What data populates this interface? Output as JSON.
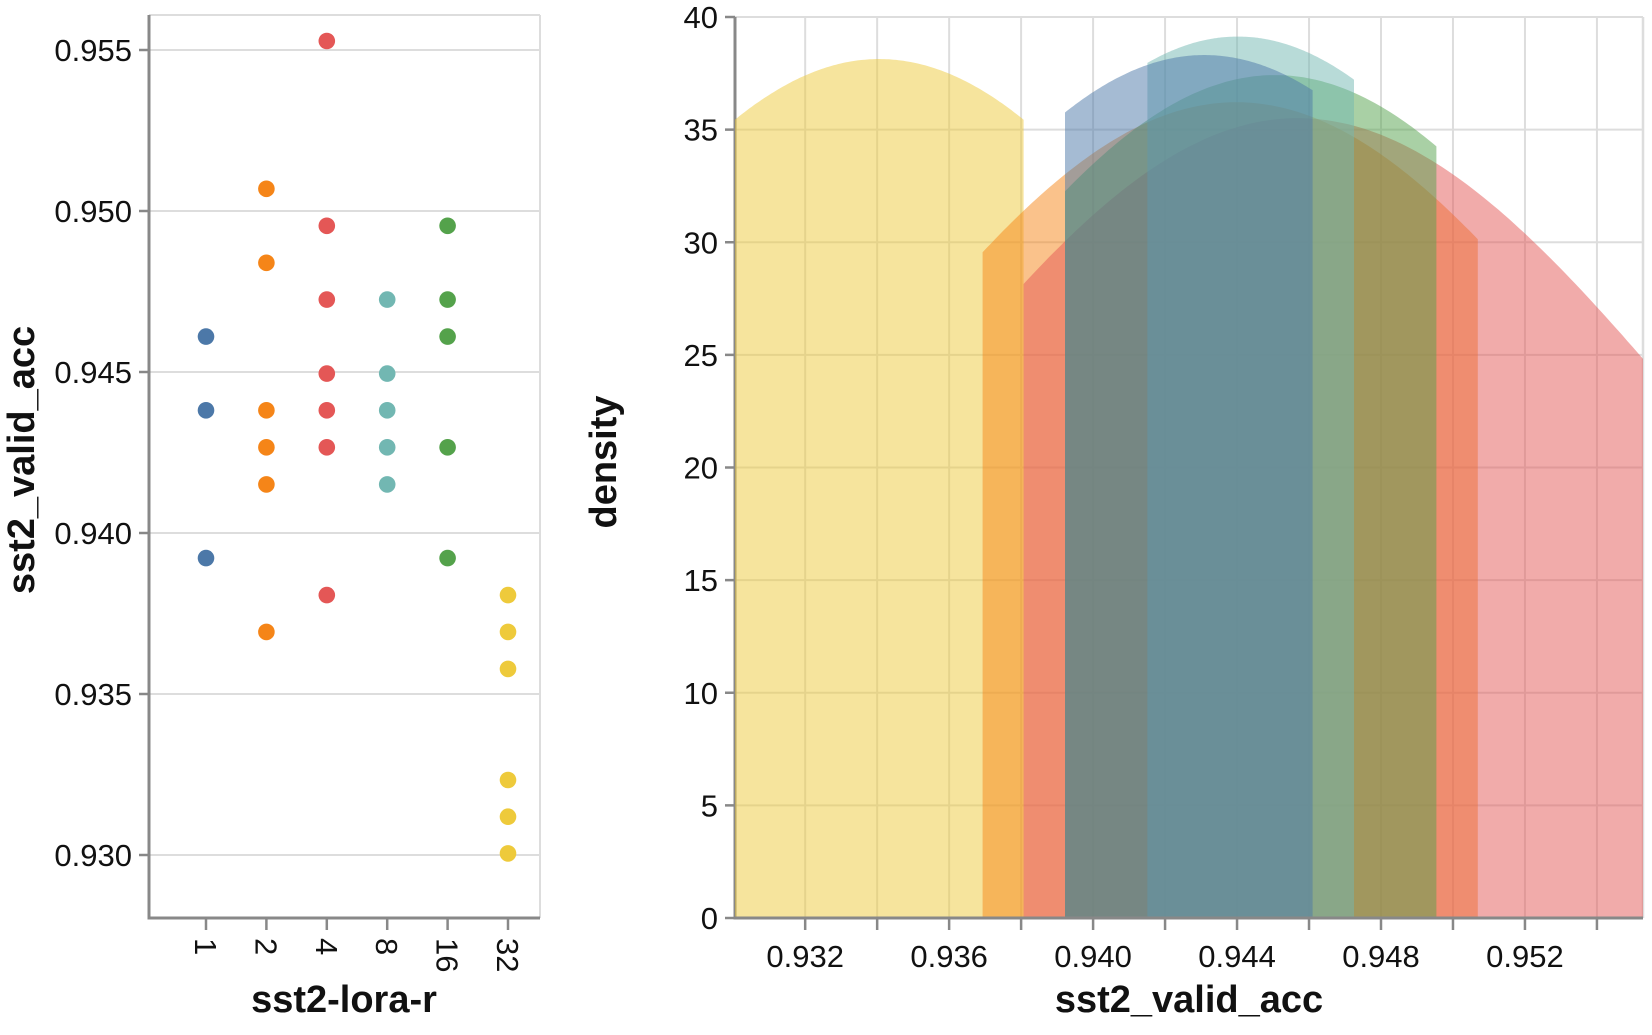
{
  "style": {
    "background": "#ffffff",
    "grid_color": "#dddddd",
    "domain_color": "#888888",
    "border_color": "#dddddd",
    "label_color": "#111111",
    "series_colors": {
      "1": "#4c78a8",
      "2": "#f58518",
      "4": "#e45756",
      "8": "#72b7b2",
      "16": "#54a24b",
      "32": "#eeca3b"
    }
  },
  "chart_data": [
    {
      "type": "scatter",
      "variant": "strip-plot",
      "xlabel": "sst2-lora-r",
      "ylabel": "sst2_valid_acc",
      "x_categories": [
        "1",
        "2",
        "4",
        "8",
        "16",
        "32"
      ],
      "y_domain": [
        0.928,
        0.9561
      ],
      "y_ticks": [
        {
          "value": 0.93,
          "label": "0.930"
        },
        {
          "value": 0.935,
          "label": "0.935"
        },
        {
          "value": 0.94,
          "label": "0.940"
        },
        {
          "value": 0.945,
          "label": "0.945"
        },
        {
          "value": 0.95,
          "label": "0.950"
        },
        {
          "value": 0.955,
          "label": "0.955"
        }
      ],
      "grid": "horizontal",
      "series": [
        {
          "label": "1",
          "color": "#4c78a8",
          "values": [
            0.9461,
            0.94381,
            0.93922
          ]
        },
        {
          "label": "2",
          "color": "#f58518",
          "values": [
            0.95069,
            0.94839,
            0.94381,
            0.94266,
            0.94151,
            0.93693
          ]
        },
        {
          "label": "4",
          "color": "#e45756",
          "values": [
            0.95528,
            0.94954,
            0.94725,
            0.94495,
            0.94381,
            0.94266,
            0.93807
          ]
        },
        {
          "label": "8",
          "color": "#72b7b2",
          "values": [
            0.94725,
            0.94495,
            0.94381,
            0.94266,
            0.94151
          ]
        },
        {
          "label": "16",
          "color": "#54a24b",
          "values": [
            0.94954,
            0.94725,
            0.9461,
            0.94266,
            0.93922
          ]
        },
        {
          "label": "32",
          "color": "#eeca3b",
          "values": [
            0.93807,
            0.93693,
            0.93578,
            0.93233,
            0.93119,
            0.93005
          ]
        }
      ]
    },
    {
      "type": "area",
      "variant": "kde-density",
      "xlabel": "sst2_valid_acc",
      "ylabel": "density",
      "x_domain": [
        0.93005,
        0.95528
      ],
      "y_domain": [
        0,
        40
      ],
      "grid": "both",
      "x_ticks": [
        {
          "value": 0.932,
          "label": "0.932"
        },
        {
          "value": 0.934,
          "label": ""
        },
        {
          "value": 0.936,
          "label": "0.936"
        },
        {
          "value": 0.938,
          "label": ""
        },
        {
          "value": 0.94,
          "label": "0.940"
        },
        {
          "value": 0.942,
          "label": ""
        },
        {
          "value": 0.944,
          "label": "0.944"
        },
        {
          "value": 0.946,
          "label": ""
        },
        {
          "value": 0.948,
          "label": "0.948"
        },
        {
          "value": 0.95,
          "label": ""
        },
        {
          "value": 0.952,
          "label": "0.952"
        },
        {
          "value": 0.954,
          "label": ""
        }
      ],
      "y_ticks": [
        {
          "value": 0,
          "label": "0"
        },
        {
          "value": 5,
          "label": "5"
        },
        {
          "value": 10,
          "label": "10"
        },
        {
          "value": 15,
          "label": "15"
        },
        {
          "value": 20,
          "label": "20"
        },
        {
          "value": 25,
          "label": "25"
        },
        {
          "value": 30,
          "label": "30"
        },
        {
          "value": 35,
          "label": "35"
        },
        {
          "value": 40,
          "label": "40"
        }
      ],
      "kde_bandwidth": 0.01,
      "fill_opacity": 0.5,
      "draw_order": [
        "32",
        "2",
        "4",
        "16",
        "8",
        "1"
      ],
      "groups": [
        {
          "label": "1",
          "color": "#4c78a8",
          "extent": [
            0.93922,
            0.9461
          ],
          "values": [
            0.9461,
            0.94381,
            0.93922
          ]
        },
        {
          "label": "2",
          "color": "#f58518",
          "extent": [
            0.93693,
            0.95069
          ],
          "values": [
            0.95069,
            0.94839,
            0.94381,
            0.94266,
            0.94151,
            0.93693
          ]
        },
        {
          "label": "4",
          "color": "#e45756",
          "extent": [
            0.93807,
            0.95528
          ],
          "values": [
            0.95528,
            0.94954,
            0.94725,
            0.94495,
            0.94381,
            0.94266,
            0.93807
          ]
        },
        {
          "label": "8",
          "color": "#72b7b2",
          "extent": [
            0.94151,
            0.94725
          ],
          "values": [
            0.94725,
            0.94495,
            0.94381,
            0.94266,
            0.94151
          ]
        },
        {
          "label": "16",
          "color": "#54a24b",
          "extent": [
            0.93922,
            0.94954
          ],
          "values": [
            0.94954,
            0.94725,
            0.9461,
            0.94266,
            0.93922
          ]
        },
        {
          "label": "32",
          "color": "#eeca3b",
          "extent": [
            0.93005,
            0.93807
          ],
          "values": [
            0.93807,
            0.93693,
            0.93578,
            0.93233,
            0.93119,
            0.93005
          ]
        }
      ]
    }
  ]
}
